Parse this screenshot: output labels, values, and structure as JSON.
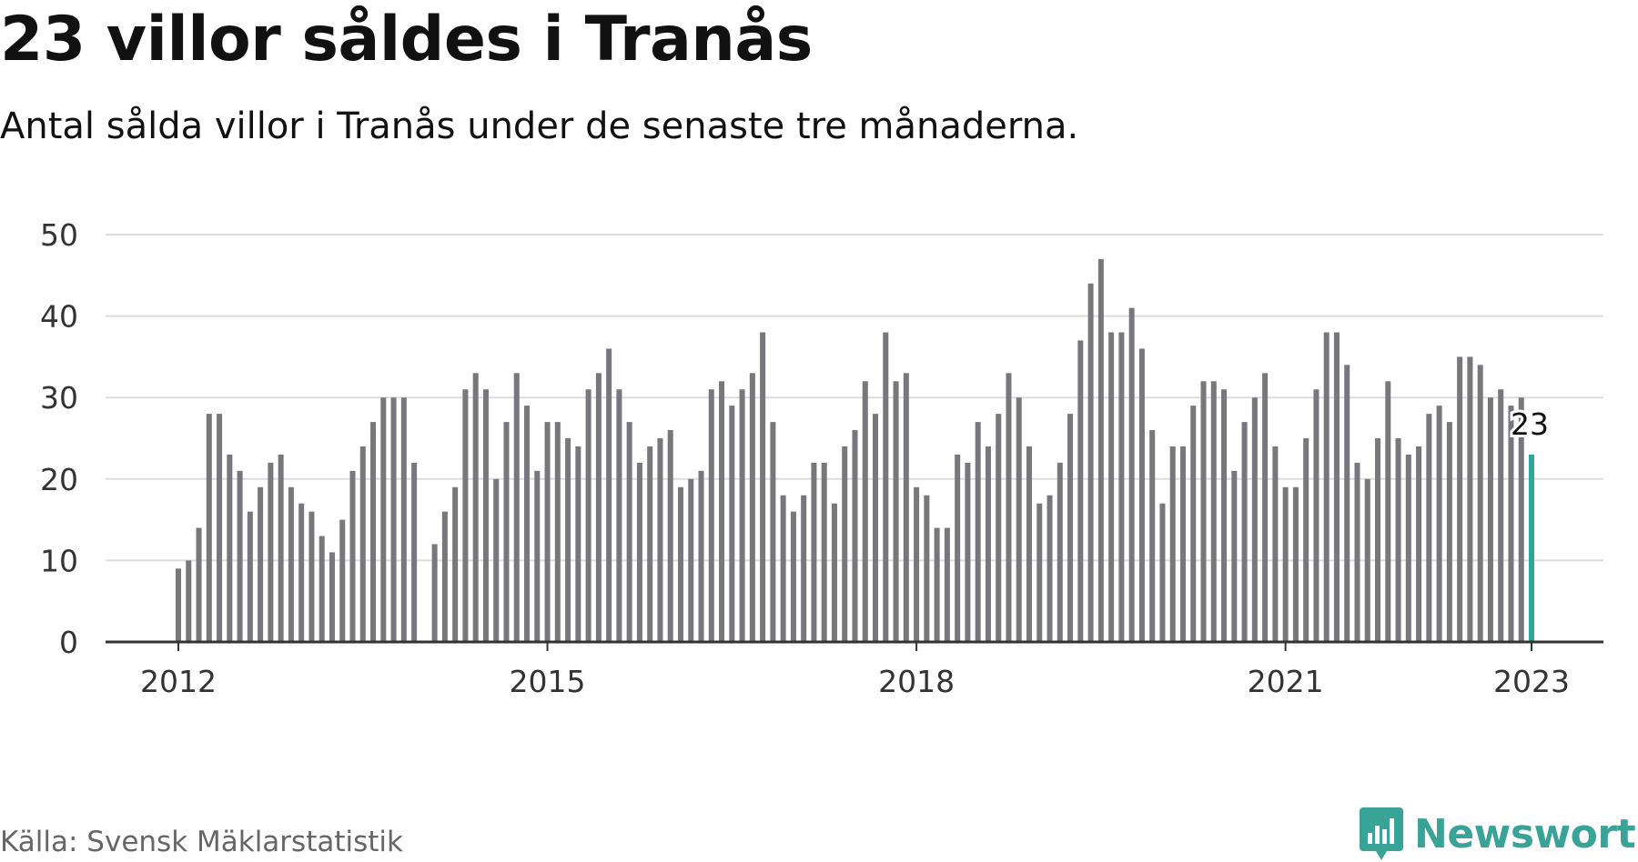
{
  "header": {
    "title": "23 villor såldes i Tranås",
    "subtitle": "Antal sålda villor i Tranås under de senaste tre månaderna."
  },
  "footer": {
    "source": "Källa: Svensk Mäklarstatistik",
    "brand": "Newsworthy"
  },
  "colors": {
    "bar": "#77777c",
    "highlight": "#2ea79b",
    "grid": "#dddddd",
    "axis": "#333333",
    "brand": "#3aa398"
  },
  "chart_data": {
    "type": "bar",
    "xlabel": "",
    "ylabel": "",
    "ylim": [
      0,
      50
    ],
    "yticks": [
      0,
      10,
      20,
      30,
      40,
      50
    ],
    "xticks": [
      "2012",
      "2015",
      "2018",
      "2021",
      "2023"
    ],
    "x_start": "2012-01",
    "x_end": "2023-01",
    "grid": true,
    "legend": "none",
    "highlight": {
      "x": "2023-01",
      "value": 23,
      "label": "23"
    },
    "values": [
      9,
      10,
      14,
      28,
      28,
      23,
      21,
      16,
      19,
      22,
      23,
      19,
      17,
      16,
      13,
      11,
      15,
      21,
      24,
      27,
      30,
      30,
      30,
      22,
      null,
      12,
      16,
      19,
      31,
      33,
      31,
      20,
      27,
      33,
      29,
      21,
      27,
      27,
      25,
      24,
      31,
      33,
      36,
      31,
      27,
      22,
      24,
      25,
      26,
      19,
      20,
      21,
      31,
      32,
      29,
      31,
      33,
      38,
      27,
      18,
      16,
      18,
      22,
      22,
      17,
      24,
      26,
      32,
      28,
      38,
      32,
      33,
      19,
      18,
      14,
      14,
      23,
      22,
      27,
      24,
      28,
      33,
      30,
      24,
      17,
      18,
      22,
      28,
      37,
      44,
      47,
      38,
      38,
      41,
      36,
      26,
      17,
      24,
      24,
      29,
      32,
      32,
      31,
      21,
      27,
      30,
      33,
      24,
      19,
      19,
      25,
      31,
      38,
      38,
      34,
      22,
      20,
      25,
      32,
      25,
      23,
      24,
      28,
      29,
      27,
      35,
      35,
      34,
      30,
      31,
      29,
      30,
      23
    ]
  }
}
